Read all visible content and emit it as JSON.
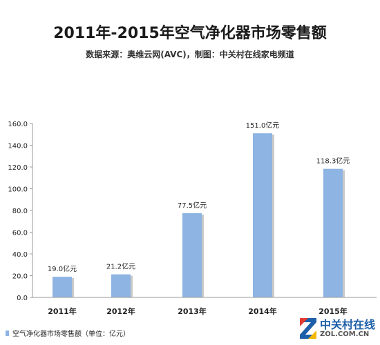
{
  "header": {
    "title": "2011年-2015年空气净化器市场零售额",
    "subtitle": "数据来源：奥维云网(AVC)，制图：中关村在线家电频道"
  },
  "legend": {
    "label": "空气净化器市场零售额（单位：亿元）",
    "color": "#8db4e2"
  },
  "logo": {
    "line1": "中关村在线",
    "line2": "ZOL.COM.CN",
    "colors": [
      "#e03c31",
      "#1d5fa8",
      "#f5b800"
    ]
  },
  "chart_data": {
    "type": "bar",
    "categories": [
      "2011年",
      "2012年",
      "2013年",
      "2014年",
      "2015年"
    ],
    "series": [
      {
        "values": [
          19.0,
          21.2,
          77.5,
          151.0,
          118.3
        ],
        "data_labels": [
          "19.0亿元",
          "21.2亿元",
          "77.5亿元",
          "151.0亿元",
          "118.3亿元"
        ],
        "color": "#8db4e2"
      }
    ],
    "ylim": [
      0,
      160
    ],
    "yticks": [
      "0.0",
      "20.0",
      "40.0",
      "60.0",
      "80.0",
      "100.0",
      "120.0",
      "140.0",
      "160.0"
    ],
    "grid": false,
    "legend_position": "bottom-left"
  }
}
